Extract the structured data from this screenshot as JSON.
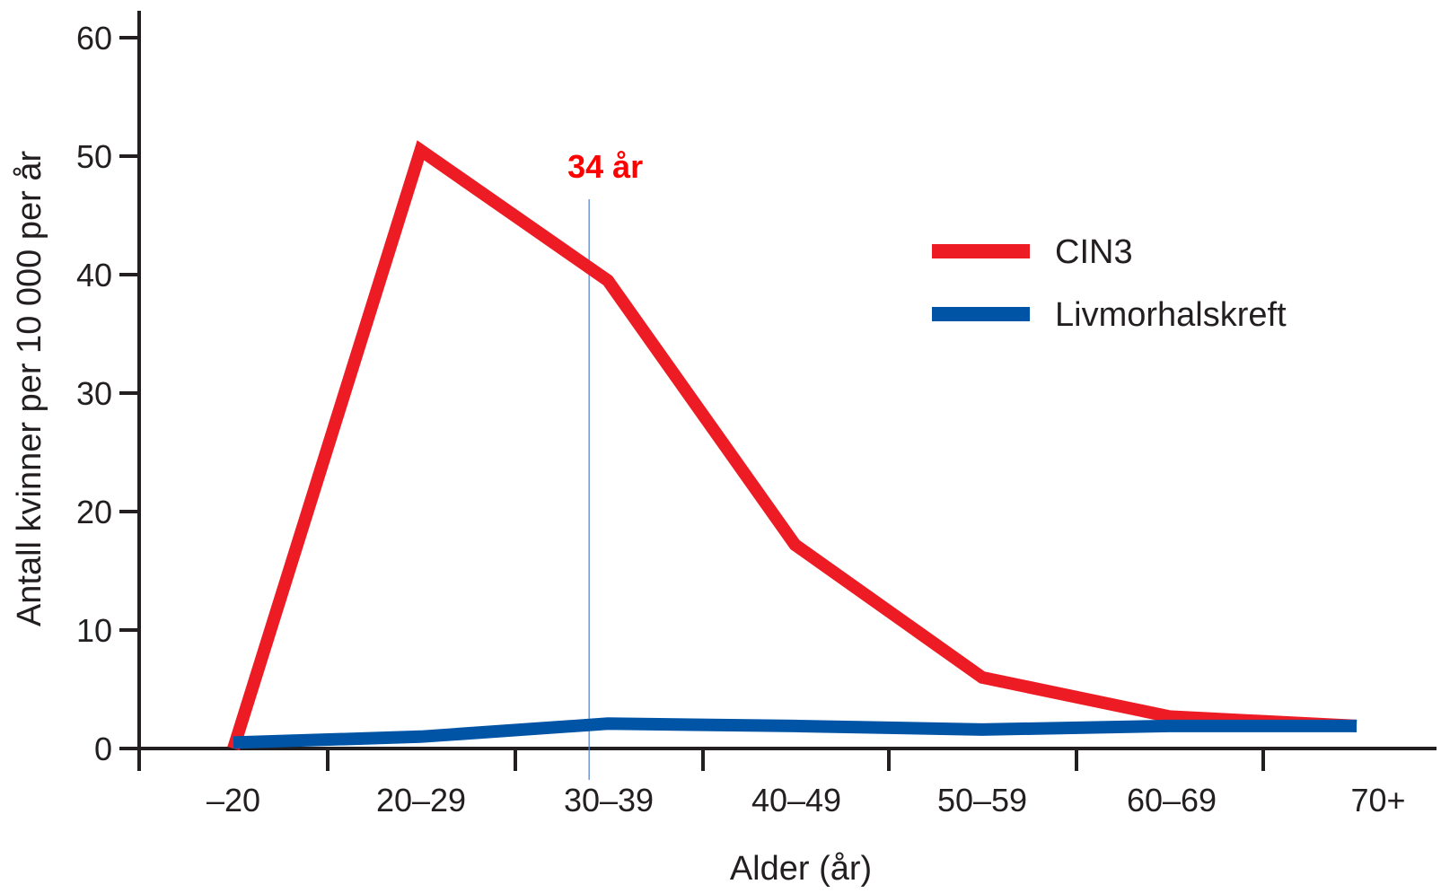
{
  "chart_data": {
    "type": "line",
    "categories": [
      "–20",
      "20–29",
      "30–39",
      "40–49",
      "50–59",
      "60–69",
      "70+"
    ],
    "series": [
      {
        "name": "CIN3",
        "values": [
          0,
          50.5,
          39.5,
          17.2,
          6.0,
          2.7,
          1.9
        ],
        "color": "#ed1c24"
      },
      {
        "name": "Livmorhalskreft",
        "values": [
          0.5,
          1.0,
          2.1,
          1.9,
          1.6,
          1.9,
          1.9
        ],
        "color": "#0054a6"
      }
    ],
    "ylabel": "Antall kvinner per 10 000 per år",
    "xlabel": "Alder (år)",
    "ylim": [
      0,
      60
    ],
    "yticks": [
      0,
      10,
      20,
      30,
      40,
      50,
      60
    ],
    "grid": false,
    "legend_position": "upper-right",
    "annotation": {
      "label": "34 år",
      "x_category_position": 1.9,
      "color": "#ff0000",
      "line_color": "#4f7fc8"
    },
    "axis_color": "#231f20"
  }
}
